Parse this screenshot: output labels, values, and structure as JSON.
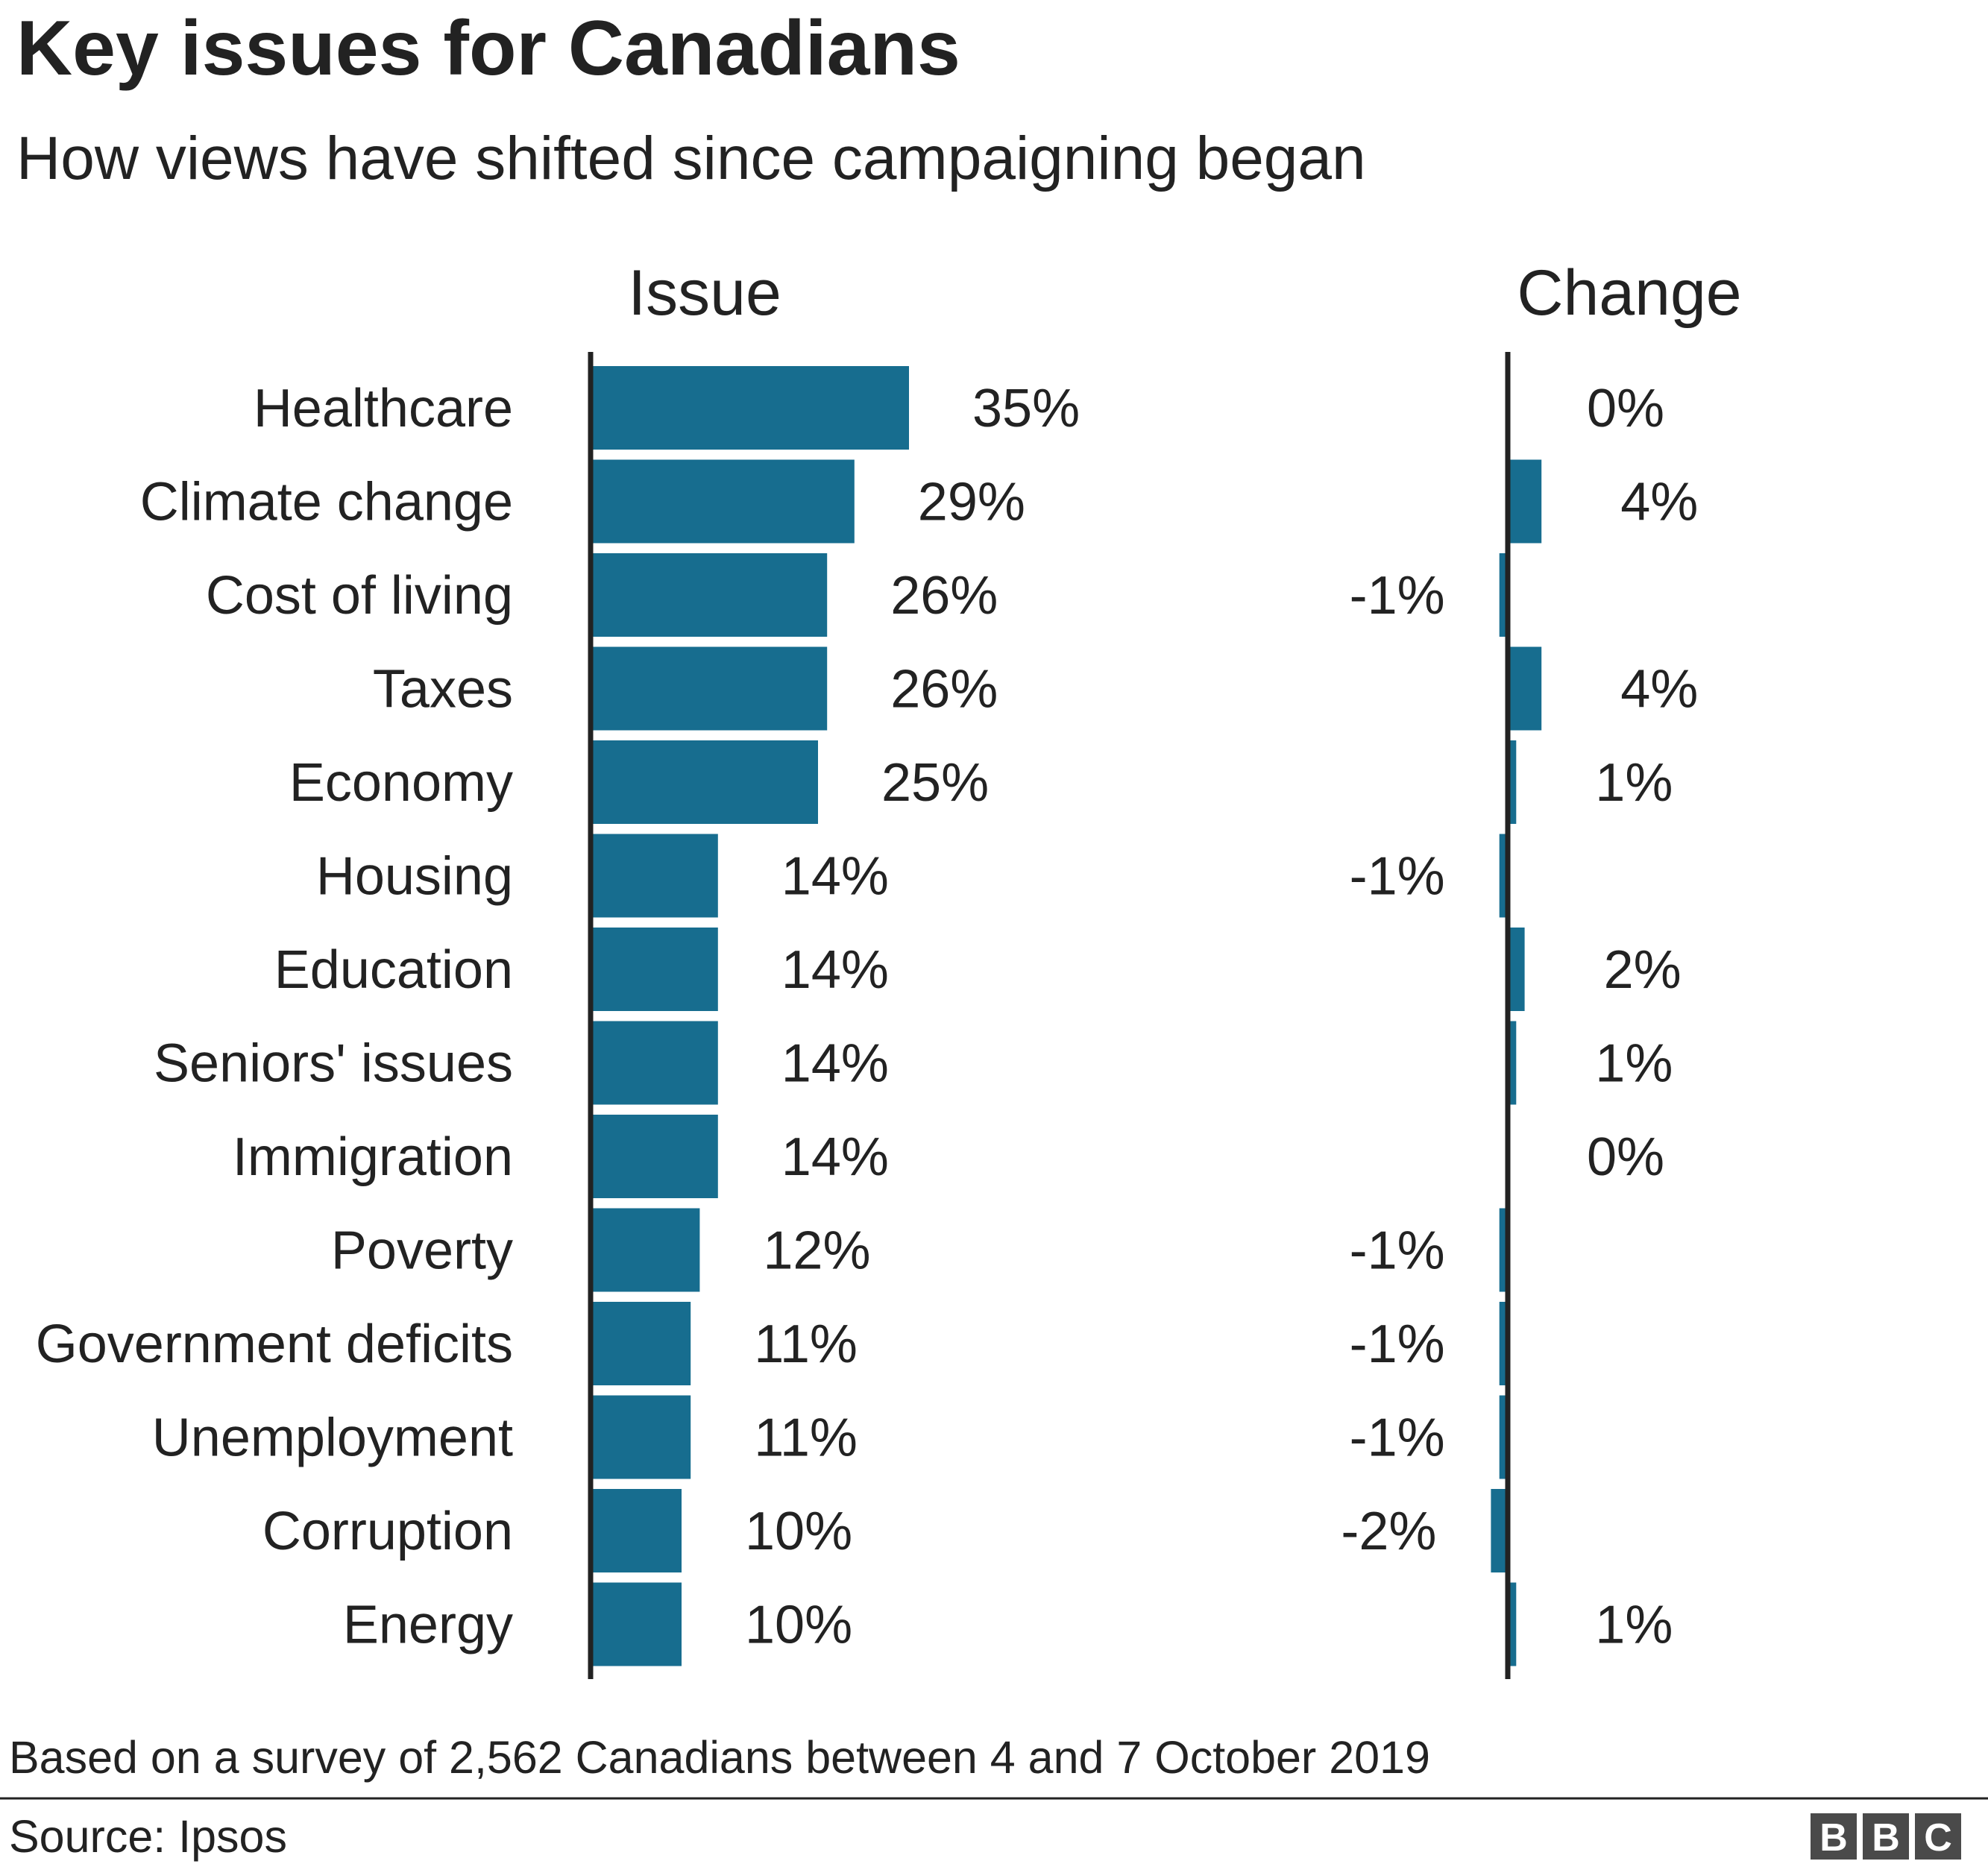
{
  "chart_data": {
    "type": "bar",
    "title": "Key issues for Canadians",
    "subtitle": "How views have shifted since campaigning began",
    "columns": [
      "Issue",
      "Change"
    ],
    "categories": [
      "Healthcare",
      "Climate change",
      "Cost of living",
      "Taxes",
      "Economy",
      "Housing",
      "Education",
      "Seniors' issues",
      "Immigration",
      "Poverty",
      "Government deficits",
      "Unemployment",
      "Corruption",
      "Energy"
    ],
    "series": [
      {
        "values": [
          35,
          29,
          26,
          26,
          25,
          14,
          14,
          14,
          14,
          12,
          11,
          11,
          10,
          10
        ]
      },
      {
        "values": [
          0,
          4,
          -1,
          4,
          1,
          -1,
          2,
          1,
          0,
          -1,
          -1,
          -1,
          -2,
          1
        ]
      }
    ],
    "value_suffix": "%",
    "grid": false,
    "bar_color": "#176d8f",
    "axis_color": "#222222",
    "note": "Based on a survey of 2,562 Canadians between 4 and 7 October 2019",
    "source": "Source: Ipsos",
    "logo": "BBC"
  }
}
